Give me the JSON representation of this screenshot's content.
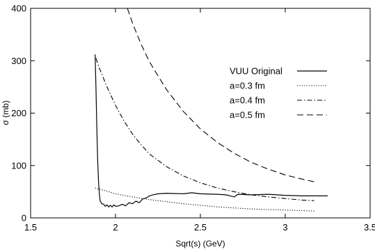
{
  "chart_data": {
    "type": "line",
    "xlabel": "Sqrt(s)  (GeV)",
    "ylabel": "σ  (mb)",
    "xlim": [
      1.5,
      3.5
    ],
    "ylim": [
      0,
      400
    ],
    "x_ticks": [
      1.5,
      2,
      2.5,
      3,
      3.5
    ],
    "x_tick_labels": [
      "1.5",
      "2",
      "2.5",
      "3",
      "3.5"
    ],
    "y_ticks": [
      0,
      100,
      200,
      300,
      400
    ],
    "y_tick_labels": [
      "0",
      "100",
      "200",
      "300",
      "400"
    ],
    "grid": false,
    "legend": "right",
    "series": [
      {
        "name": "VUU Original",
        "dash": "solid",
        "points": [
          [
            1.88,
            312
          ],
          [
            1.885,
            250
          ],
          [
            1.89,
            170
          ],
          [
            1.895,
            110
          ],
          [
            1.9,
            70
          ],
          [
            1.905,
            45
          ],
          [
            1.91,
            32
          ],
          [
            1.92,
            27
          ],
          [
            1.93,
            26
          ],
          [
            1.94,
            22
          ],
          [
            1.95,
            25
          ],
          [
            1.96,
            21
          ],
          [
            1.97,
            24
          ],
          [
            1.98,
            21
          ],
          [
            1.99,
            25
          ],
          [
            2.0,
            22
          ],
          [
            2.02,
            23
          ],
          [
            2.04,
            26
          ],
          [
            2.06,
            23
          ],
          [
            2.08,
            29
          ],
          [
            2.1,
            27
          ],
          [
            2.12,
            32
          ],
          [
            2.14,
            29
          ],
          [
            2.16,
            36
          ],
          [
            2.18,
            38
          ],
          [
            2.2,
            42
          ],
          [
            2.22,
            44
          ],
          [
            2.25,
            46
          ],
          [
            2.3,
            47
          ],
          [
            2.4,
            46
          ],
          [
            2.45,
            48
          ],
          [
            2.5,
            46
          ],
          [
            2.6,
            45
          ],
          [
            2.65,
            44
          ],
          [
            2.7,
            40
          ],
          [
            2.72,
            45
          ],
          [
            2.8,
            44
          ],
          [
            2.9,
            45
          ],
          [
            3.0,
            43
          ],
          [
            3.1,
            42
          ],
          [
            3.2,
            42
          ],
          [
            3.25,
            42
          ]
        ]
      },
      {
        "name": "a=0.3 fm",
        "dash": "dotted",
        "points": [
          [
            1.88,
            57
          ],
          [
            1.95,
            51
          ],
          [
            2.0,
            46
          ],
          [
            2.1,
            40
          ],
          [
            2.2,
            35
          ],
          [
            2.3,
            31
          ],
          [
            2.4,
            27
          ],
          [
            2.5,
            24
          ],
          [
            2.6,
            21
          ],
          [
            2.7,
            19
          ],
          [
            2.8,
            17
          ],
          [
            2.9,
            16
          ],
          [
            3.0,
            15
          ],
          [
            3.1,
            14
          ],
          [
            3.17,
            13
          ]
        ]
      },
      {
        "name": "a=0.4 fm",
        "dash": "dashdot",
        "points": [
          [
            1.885,
            305
          ],
          [
            1.9,
            290
          ],
          [
            1.95,
            250
          ],
          [
            2.0,
            215
          ],
          [
            2.05,
            185
          ],
          [
            2.1,
            160
          ],
          [
            2.15,
            140
          ],
          [
            2.2,
            122
          ],
          [
            2.3,
            98
          ],
          [
            2.4,
            80
          ],
          [
            2.5,
            67
          ],
          [
            2.6,
            57
          ],
          [
            2.7,
            50
          ],
          [
            2.8,
            44
          ],
          [
            2.9,
            40
          ],
          [
            3.0,
            37
          ],
          [
            3.1,
            34
          ],
          [
            3.17,
            33
          ]
        ]
      },
      {
        "name": "a=0.5 fm",
        "dash": "dashed",
        "points": [
          [
            2.07,
            400
          ],
          [
            2.1,
            372
          ],
          [
            2.15,
            332
          ],
          [
            2.2,
            298
          ],
          [
            2.3,
            245
          ],
          [
            2.4,
            203
          ],
          [
            2.5,
            170
          ],
          [
            2.6,
            144
          ],
          [
            2.7,
            123
          ],
          [
            2.8,
            106
          ],
          [
            2.9,
            93
          ],
          [
            3.0,
            82
          ],
          [
            3.1,
            74
          ],
          [
            3.17,
            69
          ]
        ]
      }
    ]
  }
}
